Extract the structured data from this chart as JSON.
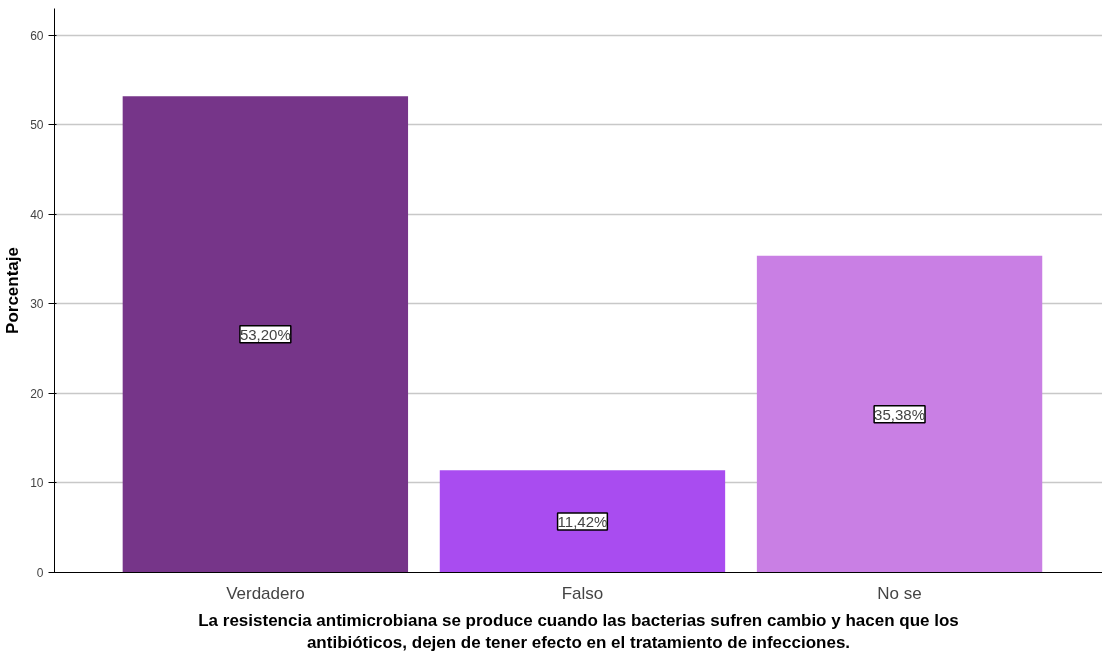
{
  "chart_data": {
    "type": "bar",
    "xlabel": "La resistencia antimicrobiana se produce cuando las bacterias sufren cambio y hacen que los antibióticos, dejen de tener efecto en el tratamiento de infecciones.",
    "ylabel": "Porcentaje",
    "categories": [
      "Verdadero",
      "Falso",
      "No se"
    ],
    "values": [
      53.2,
      11.42,
      35.38
    ],
    "colors": [
      "#763589",
      "#a94cf0",
      "#c97fe4"
    ],
    "value_labels": [
      "53,20%",
      "11,42%",
      "35,38%"
    ],
    "ylim": [
      0,
      63
    ],
    "yticks": [
      0,
      10,
      20,
      30,
      40,
      50,
      60
    ],
    "grid": "y"
  }
}
